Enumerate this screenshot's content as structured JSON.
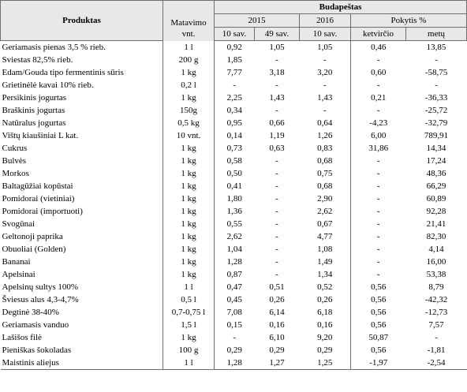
{
  "table": {
    "header": {
      "product": "Produktas",
      "unit_line1": "Matavimo",
      "unit_line2": "vnt.",
      "city": "Budapeštas",
      "year_2015": "2015",
      "year_2016": "2016",
      "change": "Pokytis %",
      "sub_2015_w10": "10 sav.",
      "sub_2015_w49": "49 sav.",
      "sub_2016_w10": "10 sav.",
      "sub_quarter": "ketvirčio",
      "sub_year": "metų"
    },
    "rows": [
      {
        "product": "Geriamasis pienas 3,5 % rieb.",
        "unit": "1 l",
        "v1": "0,92",
        "v2": "1,05",
        "v3": "1,05",
        "q": "0,46",
        "y": "13,85"
      },
      {
        "product": "Sviestas 82,5% rieb.",
        "unit": "200 g",
        "v1": "1,85",
        "v2": "-",
        "v3": "-",
        "q": "-",
        "y": "-"
      },
      {
        "product": "Edam/Gouda tipo fermentinis sūris",
        "unit": "1 kg",
        "v1": "7,77",
        "v2": "3,18",
        "v3": "3,20",
        "q": "0,60",
        "y": "-58,75"
      },
      {
        "product": "Grietinėlė kavai 10% rieb.",
        "unit": "0,2 l",
        "v1": "-",
        "v2": "-",
        "v3": "-",
        "q": "-",
        "y": "-"
      },
      {
        "product": "Persikinis jogurtas",
        "unit": "1 kg",
        "v1": "2,25",
        "v2": "1,43",
        "v3": "1,43",
        "q": "0,21",
        "y": "-36,33"
      },
      {
        "product": "Braškinis jogurtas",
        "unit": "150g",
        "v1": "0,34",
        "v2": "-",
        "v3": "-",
        "q": "-",
        "y": "-25,72"
      },
      {
        "product": "Natūralus jogurtas",
        "unit": "0,5 kg",
        "v1": "0,95",
        "v2": "0,66",
        "v3": "0,64",
        "q": "-4,23",
        "y": "-32,79"
      },
      {
        "product": "Vištų kiaušiniai L kat.",
        "unit": "10 vnt.",
        "v1": "0,14",
        "v2": "1,19",
        "v3": "1,26",
        "q": "6,00",
        "y": "789,91"
      },
      {
        "product": "Cukrus",
        "unit": "1 kg",
        "v1": "0,73",
        "v2": "0,63",
        "v3": "0,83",
        "q": "31,86",
        "y": "14,34"
      },
      {
        "product": "Bulvės",
        "unit": "1 kg",
        "v1": "0,58",
        "v2": "-",
        "v3": "0,68",
        "q": "-",
        "y": "17,24"
      },
      {
        "product": "Morkos",
        "unit": "1 kg",
        "v1": "0,50",
        "v2": "-",
        "v3": "0,75",
        "q": "-",
        "y": "48,36"
      },
      {
        "product": "Baltagūžiai kopūstai",
        "unit": "1 kg",
        "v1": "0,41",
        "v2": "-",
        "v3": "0,68",
        "q": "-",
        "y": "66,29"
      },
      {
        "product": "Pomidorai (vietiniai)",
        "unit": "1 kg",
        "v1": "1,80",
        "v2": "-",
        "v3": "2,90",
        "q": "-",
        "y": "60,89"
      },
      {
        "product": "Pomidorai (importuoti)",
        "unit": "1 kg",
        "v1": "1,36",
        "v2": "-",
        "v3": "2,62",
        "q": "-",
        "y": "92,28"
      },
      {
        "product": "Svogūnai",
        "unit": "1 kg",
        "v1": "0,55",
        "v2": "-",
        "v3": "0,67",
        "q": "-",
        "y": "21,41"
      },
      {
        "product": "Geltonoji paprika",
        "unit": "1 kg",
        "v1": "2,62",
        "v2": "-",
        "v3": "4,77",
        "q": "-",
        "y": "82,30"
      },
      {
        "product": "Obuoliai (Golden)",
        "unit": "1 kg",
        "v1": "1,04",
        "v2": "-",
        "v3": "1,08",
        "q": "-",
        "y": "4,14"
      },
      {
        "product": "Bananai",
        "unit": "1 kg",
        "v1": "1,28",
        "v2": "-",
        "v3": "1,49",
        "q": "-",
        "y": "16,00"
      },
      {
        "product": "Apelsinai",
        "unit": "1 kg",
        "v1": "0,87",
        "v2": "-",
        "v3": "1,34",
        "q": "-",
        "y": "53,38"
      },
      {
        "product": "Apelsinų sultys 100%",
        "unit": "1 l",
        "v1": "0,47",
        "v2": "0,51",
        "v3": "0,52",
        "q": "0,56",
        "y": "8,79"
      },
      {
        "product": "Šviesus alus 4,3-4,7%",
        "unit": "0,5 l",
        "v1": "0,45",
        "v2": "0,26",
        "v3": "0,26",
        "q": "0,56",
        "y": "-42,32"
      },
      {
        "product": "Degtinė 38-40%",
        "unit": "0,7-0,75 l",
        "v1": "7,08",
        "v2": "6,14",
        "v3": "6,18",
        "q": "0,56",
        "y": "-12,73"
      },
      {
        "product": "Geriamasis vanduo",
        "unit": "1,5 l",
        "v1": "0,15",
        "v2": "0,16",
        "v3": "0,16",
        "q": "0,56",
        "y": "7,57"
      },
      {
        "product": "Lašišos filė",
        "unit": "1 kg",
        "v1": "-",
        "v2": "6,10",
        "v3": "9,20",
        "q": "50,87",
        "y": "-"
      },
      {
        "product": "Pieniškas šokoladas",
        "unit": "100 g",
        "v1": "0,29",
        "v2": "0,29",
        "v3": "0,29",
        "q": "0,56",
        "y": "-1,81"
      },
      {
        "product": "Maistinis aliejus",
        "unit": "1 l",
        "v1": "1,28",
        "v2": "1,27",
        "v3": "1,25",
        "q": "-1,97",
        "y": "-2,54"
      }
    ]
  }
}
